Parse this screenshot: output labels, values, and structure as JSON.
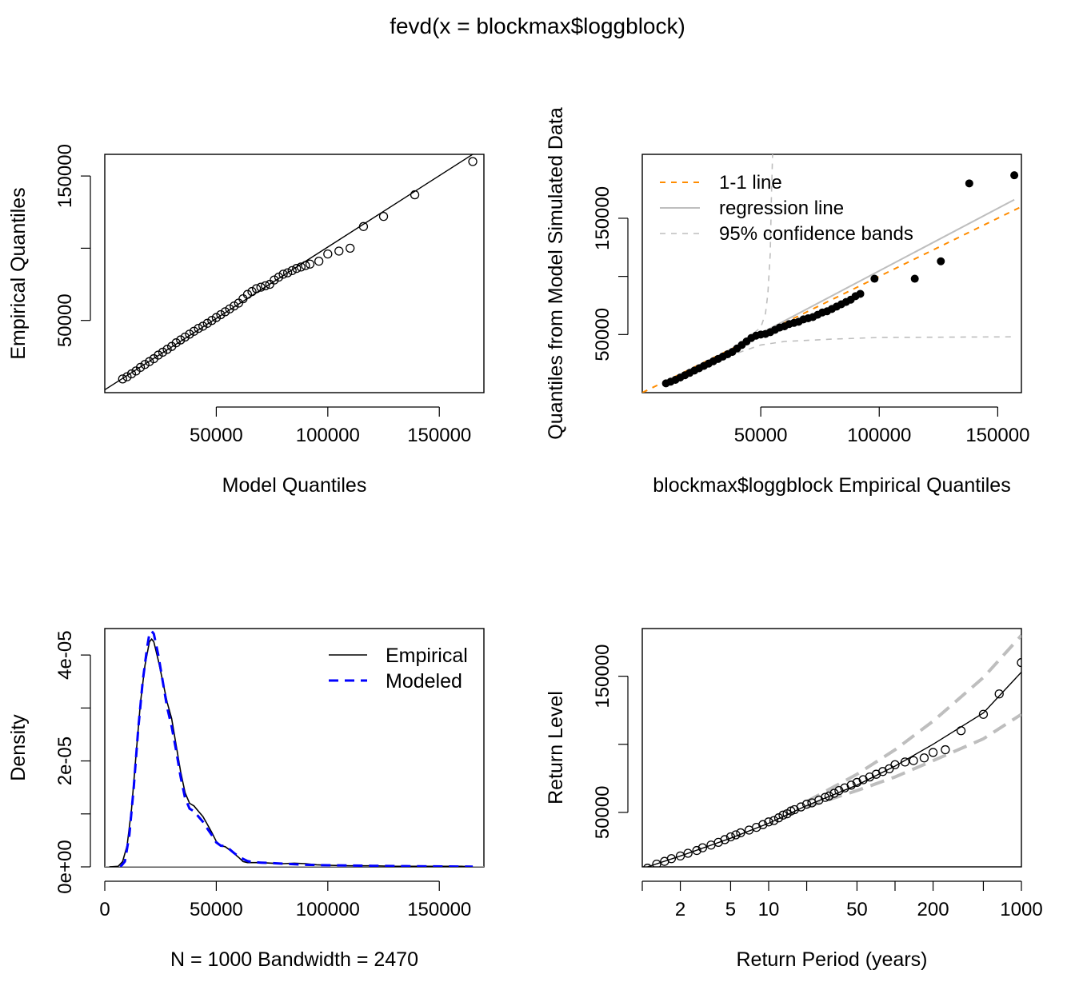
{
  "title": "fevd(x = blockmax$loggblock)",
  "chart_data": [
    {
      "type": "scatter",
      "name": "qq-model",
      "xlabel": "Model Quantiles",
      "ylabel": "Empirical Quantiles",
      "xlim": [
        0,
        170000
      ],
      "ylim": [
        0,
        165000
      ],
      "x_ticks": [
        50000,
        100000,
        150000
      ],
      "y_ticks": [
        50000,
        100000,
        150000
      ],
      "x_tick_labels": [
        "50000",
        "100000",
        "150000"
      ],
      "y_tick_labels": [
        "50000",
        "",
        "150000"
      ],
      "points": [
        [
          8000,
          9500
        ],
        [
          10000,
          11000
        ],
        [
          12000,
          13000
        ],
        [
          14000,
          15000
        ],
        [
          16000,
          17500
        ],
        [
          18000,
          19500
        ],
        [
          20000,
          21500
        ],
        [
          22000,
          23500
        ],
        [
          24000,
          26000
        ],
        [
          26000,
          28000
        ],
        [
          28000,
          30000
        ],
        [
          30000,
          32000
        ],
        [
          32000,
          34500
        ],
        [
          34000,
          36500
        ],
        [
          36000,
          38500
        ],
        [
          38000,
          40500
        ],
        [
          40000,
          42500
        ],
        [
          42000,
          44500
        ],
        [
          44000,
          46000
        ],
        [
          46000,
          48000
        ],
        [
          48000,
          50000
        ],
        [
          50000,
          52000
        ],
        [
          52000,
          54000
        ],
        [
          54000,
          56000
        ],
        [
          56000,
          58000
        ],
        [
          58000,
          60000
        ],
        [
          60000,
          62000
        ],
        [
          62000,
          65000
        ],
        [
          64000,
          68000
        ],
        [
          66000,
          70000
        ],
        [
          68000,
          72000
        ],
        [
          70000,
          73000
        ],
        [
          72000,
          74000
        ],
        [
          74000,
          75000
        ],
        [
          76000,
          78000
        ],
        [
          78000,
          80000
        ],
        [
          80000,
          82000
        ],
        [
          82000,
          83000
        ],
        [
          84000,
          84500
        ],
        [
          86000,
          86000
        ],
        [
          88000,
          87000
        ],
        [
          90000,
          88000
        ],
        [
          92000,
          89000
        ],
        [
          96000,
          91000
        ],
        [
          100000,
          96000
        ],
        [
          105000,
          98000
        ],
        [
          110000,
          100000
        ],
        [
          116000,
          115000
        ],
        [
          125000,
          122000
        ],
        [
          139000,
          137000
        ],
        [
          165000,
          160000
        ]
      ],
      "reference_line": [
        [
          0,
          2000
        ],
        [
          170000,
          170000
        ]
      ]
    },
    {
      "type": "scatter",
      "name": "qq-simulated",
      "xlabel": "blockmax$loggblock Empirical Quantiles",
      "ylabel": "Quantiles from Model Simulated Data",
      "xlim": [
        0,
        160000
      ],
      "ylim": [
        0,
        205000
      ],
      "x_ticks": [
        50000,
        100000,
        150000
      ],
      "y_ticks": [
        50000,
        100000,
        150000
      ],
      "x_tick_labels": [
        "50000",
        "100000",
        "150000"
      ],
      "y_tick_labels": [
        "50000",
        "",
        "150000"
      ],
      "legend_position": "top-left",
      "legend": [
        "1-1 line",
        "regression line",
        "95% confidence bands"
      ],
      "colors": {
        "one_to_one": "#ff8c00",
        "regression": "#bebebe",
        "bands": "#bebebe"
      },
      "points": [
        [
          10000,
          8000
        ],
        [
          12000,
          9500
        ],
        [
          14000,
          11000
        ],
        [
          16000,
          13000
        ],
        [
          18000,
          15000
        ],
        [
          20000,
          17000
        ],
        [
          22000,
          19000
        ],
        [
          24000,
          21000
        ],
        [
          26000,
          23000
        ],
        [
          28000,
          25000
        ],
        [
          30000,
          27000
        ],
        [
          32000,
          29000
        ],
        [
          34000,
          31000
        ],
        [
          36000,
          33000
        ],
        [
          38000,
          35000
        ],
        [
          40000,
          38000
        ],
        [
          42000,
          41000
        ],
        [
          44000,
          44000
        ],
        [
          46000,
          47000
        ],
        [
          48000,
          49000
        ],
        [
          50000,
          50000
        ],
        [
          52000,
          50500
        ],
        [
          54000,
          52000
        ],
        [
          56000,
          54000
        ],
        [
          58000,
          56000
        ],
        [
          60000,
          57000
        ],
        [
          62000,
          59000
        ],
        [
          64000,
          60000
        ],
        [
          66000,
          61000
        ],
        [
          68000,
          63000
        ],
        [
          70000,
          64000
        ],
        [
          72000,
          65000
        ],
        [
          74000,
          67000
        ],
        [
          76000,
          69000
        ],
        [
          78000,
          70000
        ],
        [
          80000,
          72000
        ],
        [
          82000,
          74000
        ],
        [
          84000,
          76000
        ],
        [
          86000,
          78000
        ],
        [
          88000,
          80000
        ],
        [
          90000,
          83000
        ],
        [
          92000,
          85000
        ],
        [
          98000,
          98000
        ],
        [
          115000,
          98000
        ],
        [
          126000,
          113000
        ],
        [
          138000,
          180000
        ],
        [
          157000,
          187000
        ]
      ],
      "one_to_one_line": [
        [
          0,
          0
        ],
        [
          160000,
          160000
        ]
      ],
      "regression_line": [
        [
          10000,
          8000
        ],
        [
          157000,
          166000
        ]
      ],
      "band_upper": [
        [
          10000,
          10000
        ],
        [
          30000,
          30000
        ],
        [
          40000,
          40000
        ],
        [
          45000,
          48000
        ],
        [
          50000,
          56000
        ],
        [
          52000,
          68000
        ],
        [
          53000,
          85000
        ],
        [
          54000,
          120000
        ],
        [
          54500,
          170000
        ],
        [
          55000,
          205000
        ]
      ],
      "band_lower": [
        [
          10000,
          8000
        ],
        [
          20000,
          17000
        ],
        [
          30000,
          26000
        ],
        [
          40000,
          34000
        ],
        [
          50000,
          41000
        ],
        [
          60000,
          44000
        ],
        [
          80000,
          46000
        ],
        [
          100000,
          47500
        ],
        [
          157000,
          48000
        ]
      ]
    },
    {
      "type": "line",
      "name": "density",
      "xlabel": "N = 1000   Bandwidth = 2470",
      "ylabel": "Density",
      "xlim": [
        0,
        170000
      ],
      "ylim": [
        0,
        4.5e-05
      ],
      "x_ticks": [
        0,
        50000,
        100000,
        150000
      ],
      "y_ticks": [
        0,
        1e-05,
        2e-05,
        3e-05,
        4e-05
      ],
      "x_tick_labels": [
        "0",
        "50000",
        "100000",
        "150000"
      ],
      "y_tick_labels": [
        "0e+00",
        "",
        "2e-05",
        "",
        "4e-05"
      ],
      "legend_position": "top-right",
      "series": [
        {
          "name": "Empirical",
          "color": "#000000",
          "points": [
            [
              2000,
              0
            ],
            [
              6000,
              1e-07
            ],
            [
              8000,
              1e-06
            ],
            [
              10000,
              4e-06
            ],
            [
              12000,
              1.1e-05
            ],
            [
              14000,
              2.1e-05
            ],
            [
              16000,
              3.1e-05
            ],
            [
              18000,
              3.8e-05
            ],
            [
              20000,
              4.25e-05
            ],
            [
              21000,
              4.3e-05
            ],
            [
              22000,
              4.25e-05
            ],
            [
              24000,
              3.9e-05
            ],
            [
              26000,
              3.5e-05
            ],
            [
              28000,
              3.1e-05
            ],
            [
              30000,
              2.8e-05
            ],
            [
              32000,
              2.3e-05
            ],
            [
              34000,
              1.8e-05
            ],
            [
              36000,
              1.4e-05
            ],
            [
              38000,
              1.2e-05
            ],
            [
              40000,
              1.15e-05
            ],
            [
              42000,
              1.05e-05
            ],
            [
              44000,
              9.5e-06
            ],
            [
              46000,
              8e-06
            ],
            [
              48000,
              6.5e-06
            ],
            [
              50000,
              4.8e-06
            ],
            [
              52000,
              4e-06
            ],
            [
              54000,
              3.8e-06
            ],
            [
              56000,
              3.2e-06
            ],
            [
              58000,
              2.5e-06
            ],
            [
              60000,
              1.8e-06
            ],
            [
              62000,
              1e-06
            ],
            [
              64000,
              8e-07
            ],
            [
              66000,
              8e-07
            ],
            [
              70000,
              8e-07
            ],
            [
              75000,
              7e-07
            ],
            [
              80000,
              6e-07
            ],
            [
              85000,
              7e-07
            ],
            [
              90000,
              6e-07
            ],
            [
              95000,
              4e-07
            ],
            [
              100000,
              3e-07
            ],
            [
              110000,
              2e-07
            ],
            [
              120000,
              2e-07
            ],
            [
              130000,
              1e-07
            ],
            [
              140000,
              1e-07
            ],
            [
              150000,
              1e-07
            ],
            [
              160000,
              1e-07
            ],
            [
              165000,
              0
            ]
          ]
        },
        {
          "name": "Modeled",
          "color": "#0000ff",
          "points": [
            [
              7000,
              0
            ],
            [
              9000,
              1e-06
            ],
            [
              11000,
              6e-06
            ],
            [
              13000,
              1.5e-05
            ],
            [
              15000,
              2.6e-05
            ],
            [
              17000,
              3.5e-05
            ],
            [
              19000,
              4.15e-05
            ],
            [
              20000,
              4.4e-05
            ],
            [
              21000,
              4.45e-05
            ],
            [
              22000,
              4.4e-05
            ],
            [
              24000,
              4e-05
            ],
            [
              26000,
              3.5e-05
            ],
            [
              28000,
              3e-05
            ],
            [
              30000,
              2.65e-05
            ],
            [
              32000,
              2.2e-05
            ],
            [
              34000,
              1.7e-05
            ],
            [
              36000,
              1.3e-05
            ],
            [
              38000,
              1.1e-05
            ],
            [
              40000,
              1.05e-05
            ],
            [
              42000,
              9.5e-06
            ],
            [
              44000,
              8.5e-06
            ],
            [
              46000,
              7.2e-06
            ],
            [
              48000,
              6e-06
            ],
            [
              50000,
              4.6e-06
            ],
            [
              52000,
              4e-06
            ],
            [
              54000,
              3.9e-06
            ],
            [
              56000,
              3.3e-06
            ],
            [
              58000,
              2.6e-06
            ],
            [
              60000,
              2e-06
            ],
            [
              62000,
              1.5e-06
            ],
            [
              64000,
              1.1e-06
            ],
            [
              66000,
              9e-07
            ],
            [
              70000,
              8e-07
            ],
            [
              80000,
              6e-07
            ],
            [
              90000,
              4e-07
            ],
            [
              100000,
              3e-07
            ],
            [
              120000,
              2e-07
            ],
            [
              140000,
              1e-07
            ],
            [
              165000,
              5e-08
            ]
          ]
        }
      ]
    },
    {
      "type": "scatter",
      "name": "return-level",
      "xlabel": "Return Period (years)",
      "ylabel": "Return Level",
      "log_x": true,
      "xlim": [
        1,
        1000
      ],
      "ylim": [
        10000,
        185000
      ],
      "x_ticks": [
        1,
        2,
        5,
        10,
        20,
        50,
        100,
        200,
        500,
        1000
      ],
      "x_tick_labels": [
        "",
        "2",
        "5",
        "10",
        "",
        "50",
        "",
        "200",
        "",
        "1000"
      ],
      "y_ticks": [
        50000,
        100000,
        150000
      ],
      "y_tick_labels": [
        "50000",
        "",
        "150000"
      ],
      "points": [
        [
          1.1,
          9000
        ],
        [
          1.3,
          12000
        ],
        [
          1.5,
          14000
        ],
        [
          1.7,
          16000
        ],
        [
          2,
          18000
        ],
        [
          2.3,
          20000
        ],
        [
          2.7,
          22000
        ],
        [
          3,
          24000
        ],
        [
          3.5,
          26000
        ],
        [
          4,
          28000
        ],
        [
          4.5,
          30000
        ],
        [
          5,
          32000
        ],
        [
          5.5,
          33500
        ],
        [
          6,
          35000
        ],
        [
          7,
          37000
        ],
        [
          8,
          39000
        ],
        [
          9,
          41000
        ],
        [
          10,
          43000
        ],
        [
          11,
          44000
        ],
        [
          12,
          46000
        ],
        [
          13,
          48000
        ],
        [
          14,
          49000
        ],
        [
          15,
          51000
        ],
        [
          16,
          52000
        ],
        [
          18,
          54000
        ],
        [
          20,
          56000
        ],
        [
          22,
          57000
        ],
        [
          25,
          59000
        ],
        [
          28,
          61000
        ],
        [
          30,
          62000
        ],
        [
          33,
          64000
        ],
        [
          36,
          66000
        ],
        [
          40,
          68000
        ],
        [
          45,
          70000
        ],
        [
          50,
          72000
        ],
        [
          56,
          74000
        ],
        [
          63,
          76000
        ],
        [
          71,
          78000
        ],
        [
          80,
          80000
        ],
        [
          90,
          82000
        ],
        [
          100,
          85000
        ],
        [
          120,
          87000
        ],
        [
          140,
          88000
        ],
        [
          170,
          90000
        ],
        [
          200,
          94000
        ],
        [
          250,
          96000
        ],
        [
          333,
          110000
        ],
        [
          500,
          122000
        ],
        [
          667,
          137000
        ],
        [
          1000,
          160000
        ]
      ],
      "fit_line": [
        [
          1.1,
          10000
        ],
        [
          2,
          18000
        ],
        [
          5,
          31000
        ],
        [
          10,
          42000
        ],
        [
          20,
          55000
        ],
        [
          50,
          70000
        ],
        [
          100,
          84000
        ],
        [
          200,
          100000
        ],
        [
          500,
          123000
        ],
        [
          1000,
          153000
        ]
      ],
      "ci_upper": [
        [
          20,
          58000
        ],
        [
          50,
          78000
        ],
        [
          100,
          96000
        ],
        [
          200,
          117000
        ],
        [
          500,
          149000
        ],
        [
          1000,
          180000
        ]
      ],
      "ci_lower": [
        [
          20,
          54000
        ],
        [
          50,
          66000
        ],
        [
          100,
          76000
        ],
        [
          200,
          88000
        ],
        [
          500,
          104000
        ],
        [
          1000,
          122000
        ]
      ]
    }
  ]
}
